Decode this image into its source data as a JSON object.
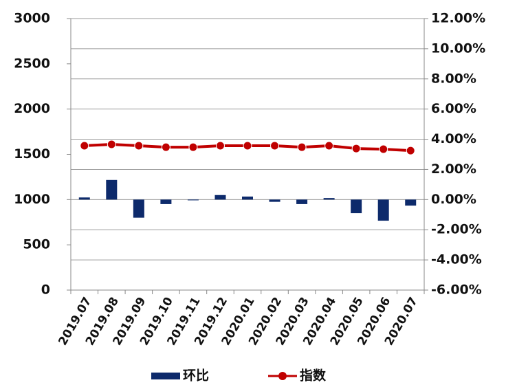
{
  "chart_data": {
    "type": "bar-line",
    "categories": [
      "2019.07",
      "2019.08",
      "2019.09",
      "2019.10",
      "2019.11",
      "2019.12",
      "2020.01",
      "2020.02",
      "2020.03",
      "2020.04",
      "2020.05",
      "2020.06",
      "2020.07"
    ],
    "series": [
      {
        "name": "环比",
        "type": "bar",
        "axis": "y2",
        "color": "#0d2a6b",
        "values": [
          0.14,
          1.3,
          -1.2,
          -0.3,
          -0.05,
          0.3,
          0.2,
          -0.15,
          -0.3,
          0.1,
          -0.9,
          -1.4,
          -0.4
        ]
      },
      {
        "name": "指数",
        "type": "line",
        "axis": "y",
        "color": "#c00000",
        "values": [
          1595,
          1610,
          1595,
          1579,
          1579,
          1595,
          1595,
          1595,
          1579,
          1595,
          1564,
          1557,
          1541
        ]
      }
    ],
    "ylim": [
      0,
      3000
    ],
    "yticks": [
      0,
      500,
      1000,
      1500,
      2000,
      2500,
      3000
    ],
    "y2lim": [
      -6,
      12
    ],
    "y2ticks": [
      {
        "value": -6,
        "label": "-6.00%"
      },
      {
        "value": -4,
        "label": "-4.00%"
      },
      {
        "value": -2,
        "label": "-2.00%"
      },
      {
        "value": 0,
        "label": "0.00%"
      },
      {
        "value": 2,
        "label": "2.00%"
      },
      {
        "value": 4,
        "label": "4.00%"
      },
      {
        "value": 6,
        "label": "6.00%"
      },
      {
        "value": 8,
        "label": "8.00%"
      },
      {
        "value": 10,
        "label": "10.00%"
      },
      {
        "value": 12,
        "label": "12.00%"
      }
    ],
    "grid": true,
    "legend": "bottom"
  }
}
